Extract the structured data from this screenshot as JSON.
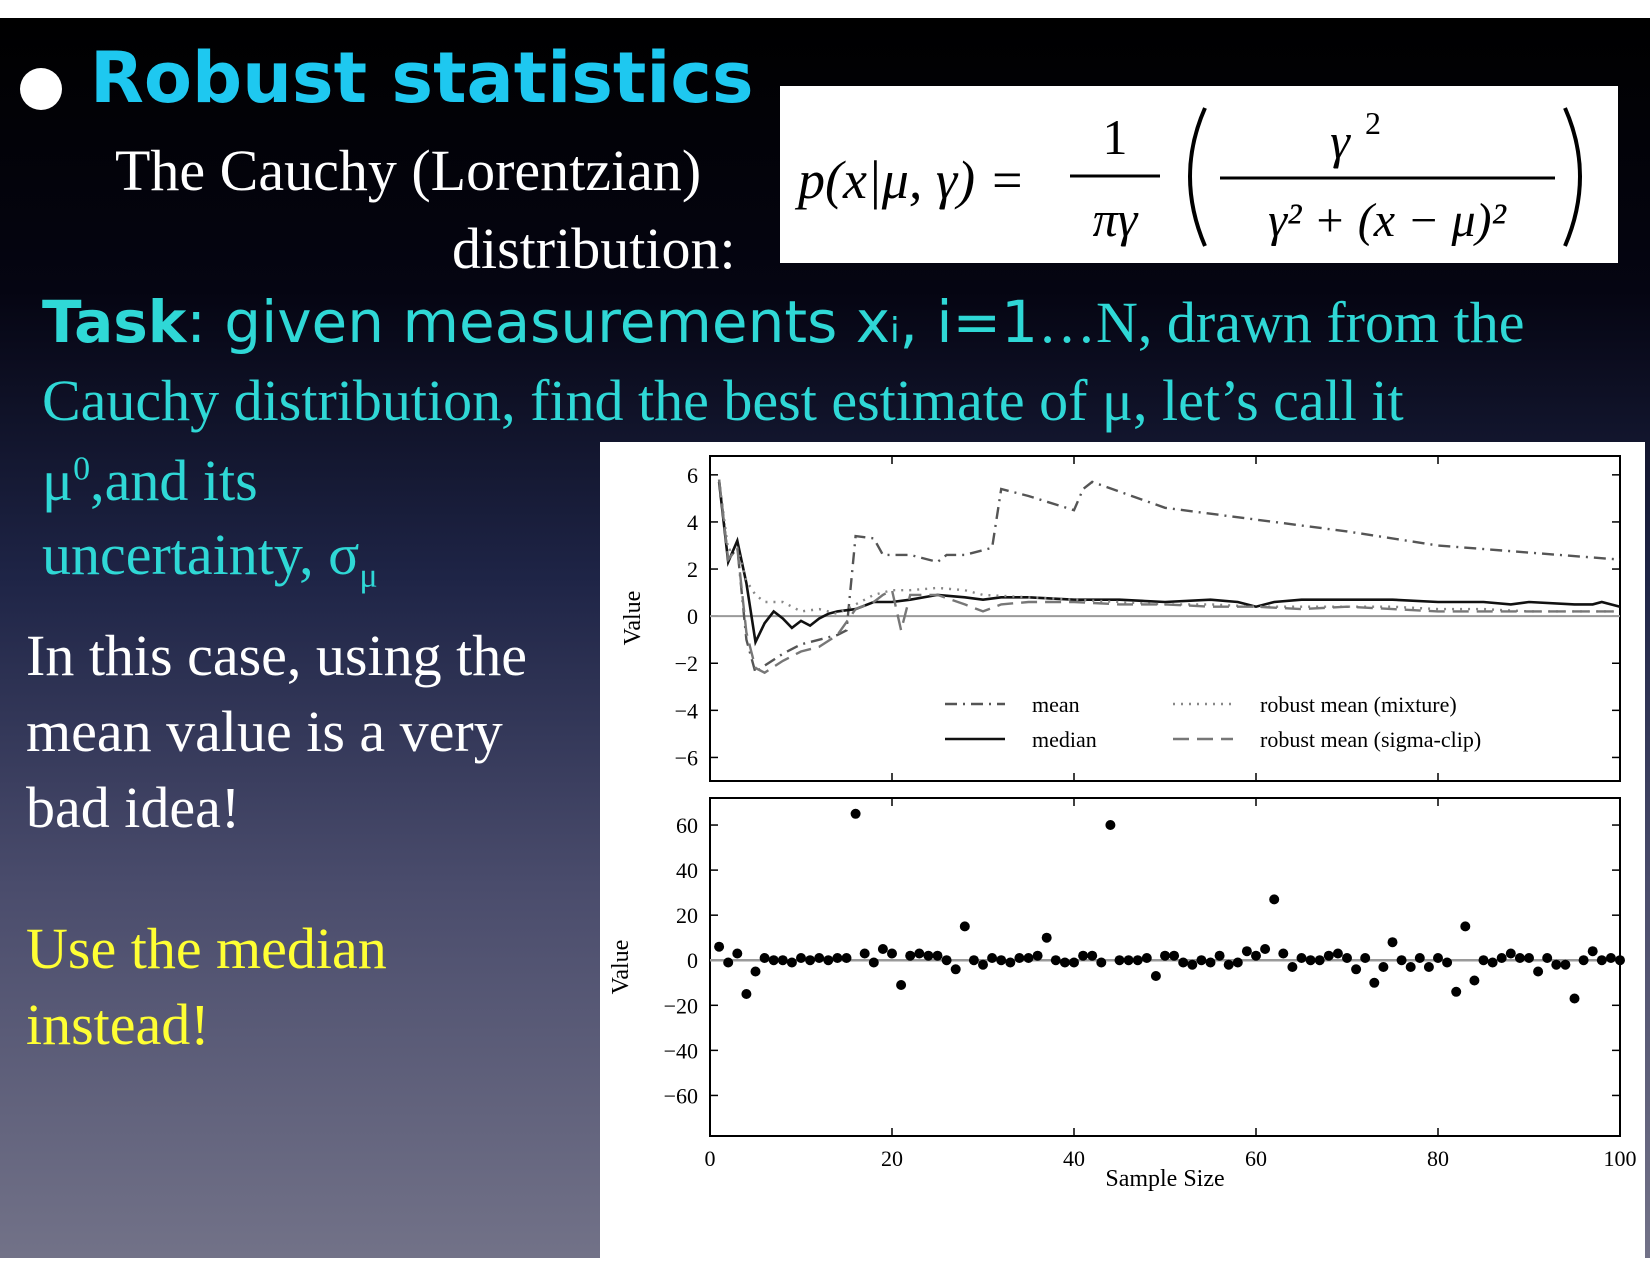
{
  "slide": {
    "title": "Robust statistics",
    "subtitle_line1": "The Cauchy (Lorentzian)",
    "subtitle_line2": "distribution:",
    "task": {
      "bold": "Task",
      "line1_a": ": given measurements x",
      "line1_sub": "i",
      "line1_b": ", i=1",
      "line1_c": "…N, drawn from the",
      "line2": "Cauchy distribution, find the best estimate of μ, let’s call it",
      "line3_mu": "μ",
      "line3_sup": "0",
      "line3_rest": ",and its",
      "line4_a": "uncertainty, σ",
      "line4_sub": "μ"
    },
    "para1": [
      "In this case, using the",
      "mean value is a very",
      "bad idea!"
    ],
    "para2": [
      "Use the median",
      "instead!"
    ],
    "formula": {
      "lhs": "p(x|μ, γ) =",
      "frac1_num": "1",
      "frac1_den": "πγ",
      "frac2_num": "γ",
      "frac2_num_exp": "2",
      "frac2_den": "γ² + (x − μ)²"
    },
    "colors": {
      "title": "#1ec8f0",
      "task": "#2fd8d6",
      "white": "#ffffff",
      "yellow": "#ffff33"
    }
  },
  "chart_data": [
    {
      "type": "line",
      "xlim": [
        0,
        100
      ],
      "ylim": [
        -7,
        6.8
      ],
      "ylabel": "Value",
      "yticks": [
        6,
        4,
        2,
        0,
        -2,
        -4,
        -6
      ],
      "ytick_labels": [
        "6",
        "4",
        "2",
        "0",
        "−2",
        "−4",
        "−6"
      ],
      "legend_position": "bottom",
      "series": [
        {
          "name": "mean",
          "style": "dashdot",
          "color": "#555555",
          "points": [
            [
              1,
              5.8
            ],
            [
              2,
              2.4
            ],
            [
              3,
              2.9
            ],
            [
              4,
              -1.0
            ],
            [
              5,
              -2.4
            ],
            [
              6,
              -2.1
            ],
            [
              8,
              -1.6
            ],
            [
              10,
              -1.2
            ],
            [
              12,
              -1.0
            ],
            [
              14,
              -0.8
            ],
            [
              15,
              -0.6
            ],
            [
              16,
              3.4
            ],
            [
              18,
              3.3
            ],
            [
              19,
              2.6
            ],
            [
              22,
              2.6
            ],
            [
              25,
              2.3
            ],
            [
              26,
              2.6
            ],
            [
              28,
              2.6
            ],
            [
              31,
              2.9
            ],
            [
              32,
              5.4
            ],
            [
              35,
              5.1
            ],
            [
              40,
              4.5
            ],
            [
              41,
              5.4
            ],
            [
              42,
              5.7
            ],
            [
              50,
              4.6
            ],
            [
              60,
              4.1
            ],
            [
              70,
              3.6
            ],
            [
              80,
              3.0
            ],
            [
              90,
              2.7
            ],
            [
              100,
              2.4
            ]
          ]
        },
        {
          "name": "median",
          "style": "solid",
          "color": "#111111",
          "points": [
            [
              1,
              5.7
            ],
            [
              2,
              2.3
            ],
            [
              3,
              3.2
            ],
            [
              4,
              1.4
            ],
            [
              5,
              -1.1
            ],
            [
              6,
              -0.3
            ],
            [
              7,
              0.2
            ],
            [
              8,
              -0.1
            ],
            [
              9,
              -0.5
            ],
            [
              10,
              -0.2
            ],
            [
              11,
              -0.4
            ],
            [
              12,
              -0.1
            ],
            [
              13,
              0.1
            ],
            [
              14,
              0.2
            ],
            [
              16,
              0.3
            ],
            [
              18,
              0.6
            ],
            [
              20,
              0.6
            ],
            [
              22,
              0.7
            ],
            [
              25,
              0.9
            ],
            [
              28,
              0.8
            ],
            [
              30,
              0.7
            ],
            [
              32,
              0.8
            ],
            [
              35,
              0.8
            ],
            [
              40,
              0.7
            ],
            [
              45,
              0.7
            ],
            [
              50,
              0.6
            ],
            [
              55,
              0.7
            ],
            [
              58,
              0.6
            ],
            [
              60,
              0.4
            ],
            [
              62,
              0.6
            ],
            [
              65,
              0.7
            ],
            [
              70,
              0.7
            ],
            [
              75,
              0.7
            ],
            [
              80,
              0.6
            ],
            [
              85,
              0.6
            ],
            [
              88,
              0.5
            ],
            [
              90,
              0.6
            ],
            [
              95,
              0.5
            ],
            [
              97,
              0.5
            ],
            [
              98,
              0.6
            ],
            [
              100,
              0.4
            ]
          ]
        },
        {
          "name": "robust mean (mixture)",
          "style": "dotted",
          "color": "#888888",
          "points": [
            [
              1,
              5.8
            ],
            [
              2,
              2.8
            ],
            [
              3,
              2.9
            ],
            [
              4,
              1.5
            ],
            [
              5,
              0.9
            ],
            [
              6,
              0.6
            ],
            [
              8,
              0.6
            ],
            [
              10,
              0.2
            ],
            [
              12,
              0.3
            ],
            [
              14,
              0.1
            ],
            [
              16,
              0.5
            ],
            [
              18,
              0.9
            ],
            [
              20,
              1.1
            ],
            [
              22,
              1.1
            ],
            [
              25,
              1.2
            ],
            [
              28,
              1.1
            ],
            [
              30,
              0.9
            ],
            [
              35,
              0.8
            ],
            [
              40,
              0.7
            ],
            [
              45,
              0.6
            ],
            [
              50,
              0.5
            ],
            [
              55,
              0.5
            ],
            [
              60,
              0.4
            ],
            [
              65,
              0.4
            ],
            [
              70,
              0.4
            ],
            [
              75,
              0.4
            ],
            [
              80,
              0.3
            ],
            [
              85,
              0.3
            ],
            [
              90,
              0.2
            ],
            [
              95,
              0.2
            ],
            [
              100,
              0.2
            ]
          ]
        },
        {
          "name": "robust mean (sigma-clip)",
          "style": "dashed",
          "color": "#777777",
          "points": [
            [
              1,
              5.8
            ],
            [
              2,
              2.4
            ],
            [
              3,
              2.9
            ],
            [
              4,
              -0.7
            ],
            [
              5,
              -2.2
            ],
            [
              6,
              -2.4
            ],
            [
              8,
              -1.9
            ],
            [
              10,
              -1.5
            ],
            [
              12,
              -1.3
            ],
            [
              14,
              -0.8
            ],
            [
              16,
              0.3
            ],
            [
              18,
              0.6
            ],
            [
              19,
              0.9
            ],
            [
              20,
              1.1
            ],
            [
              21,
              -0.6
            ],
            [
              22,
              0.9
            ],
            [
              25,
              0.9
            ],
            [
              28,
              0.5
            ],
            [
              30,
              0.2
            ],
            [
              32,
              0.5
            ],
            [
              35,
              0.6
            ],
            [
              40,
              0.6
            ],
            [
              45,
              0.5
            ],
            [
              50,
              0.5
            ],
            [
              55,
              0.4
            ],
            [
              60,
              0.4
            ],
            [
              65,
              0.3
            ],
            [
              70,
              0.4
            ],
            [
              75,
              0.3
            ],
            [
              80,
              0.2
            ],
            [
              85,
              0.2
            ],
            [
              90,
              0.2
            ],
            [
              95,
              0.2
            ],
            [
              100,
              0.2
            ]
          ]
        }
      ],
      "legend_rows": [
        [
          "mean",
          "robust mean (mixture)"
        ],
        [
          "median",
          "robust mean (sigma-clip)"
        ]
      ]
    },
    {
      "type": "scatter",
      "xlim": [
        0,
        100
      ],
      "ylim": [
        -78,
        72
      ],
      "xlabel": "Sample Size",
      "ylabel": "Value",
      "xticks": [
        0,
        20,
        40,
        60,
        80,
        100
      ],
      "yticks": [
        60,
        40,
        20,
        0,
        -20,
        -40,
        -60
      ],
      "ytick_labels": [
        "60",
        "40",
        "20",
        "0",
        "−20",
        "−40",
        "−60"
      ],
      "x": [
        1,
        2,
        3,
        4,
        5,
        6,
        7,
        8,
        9,
        10,
        11,
        12,
        13,
        14,
        15,
        16,
        17,
        18,
        19,
        20,
        21,
        22,
        23,
        24,
        25,
        26,
        27,
        28,
        29,
        30,
        31,
        32,
        33,
        34,
        35,
        36,
        37,
        38,
        39,
        40,
        41,
        42,
        43,
        44,
        45,
        46,
        47,
        48,
        49,
        50,
        51,
        52,
        53,
        54,
        55,
        56,
        57,
        58,
        59,
        60,
        61,
        62,
        63,
        64,
        65,
        66,
        67,
        68,
        69,
        70,
        71,
        72,
        73,
        74,
        75,
        76,
        77,
        78,
        79,
        80,
        81,
        82,
        83,
        84,
        85,
        86,
        87,
        88,
        89,
        90,
        91,
        92,
        93,
        94,
        95,
        96,
        97,
        98,
        99,
        100
      ],
      "y": [
        6,
        -1,
        3,
        -15,
        -5,
        1,
        0,
        0,
        -1,
        1,
        0,
        1,
        0,
        1,
        1,
        65,
        3,
        -1,
        5,
        3,
        -11,
        2,
        3,
        2,
        2,
        0,
        -4,
        15,
        0,
        -2,
        1,
        0,
        -1,
        1,
        1,
        2,
        10,
        0,
        -1,
        -1,
        2,
        2,
        -1,
        60,
        0,
        0,
        0,
        1,
        -7,
        2,
        2,
        -1,
        -2,
        0,
        -1,
        2,
        -2,
        -1,
        4,
        2,
        5,
        27,
        3,
        -3,
        1,
        0,
        0,
        2,
        3,
        1,
        -4,
        1,
        -10,
        -3,
        8,
        0,
        -3,
        1,
        -3,
        1,
        -1,
        -14,
        15,
        -9,
        0,
        -1,
        1,
        3,
        1,
        1,
        -5,
        1,
        -2,
        -2,
        -17,
        0,
        4,
        0,
        1,
        0
      ],
      "baseline": 0
    }
  ]
}
